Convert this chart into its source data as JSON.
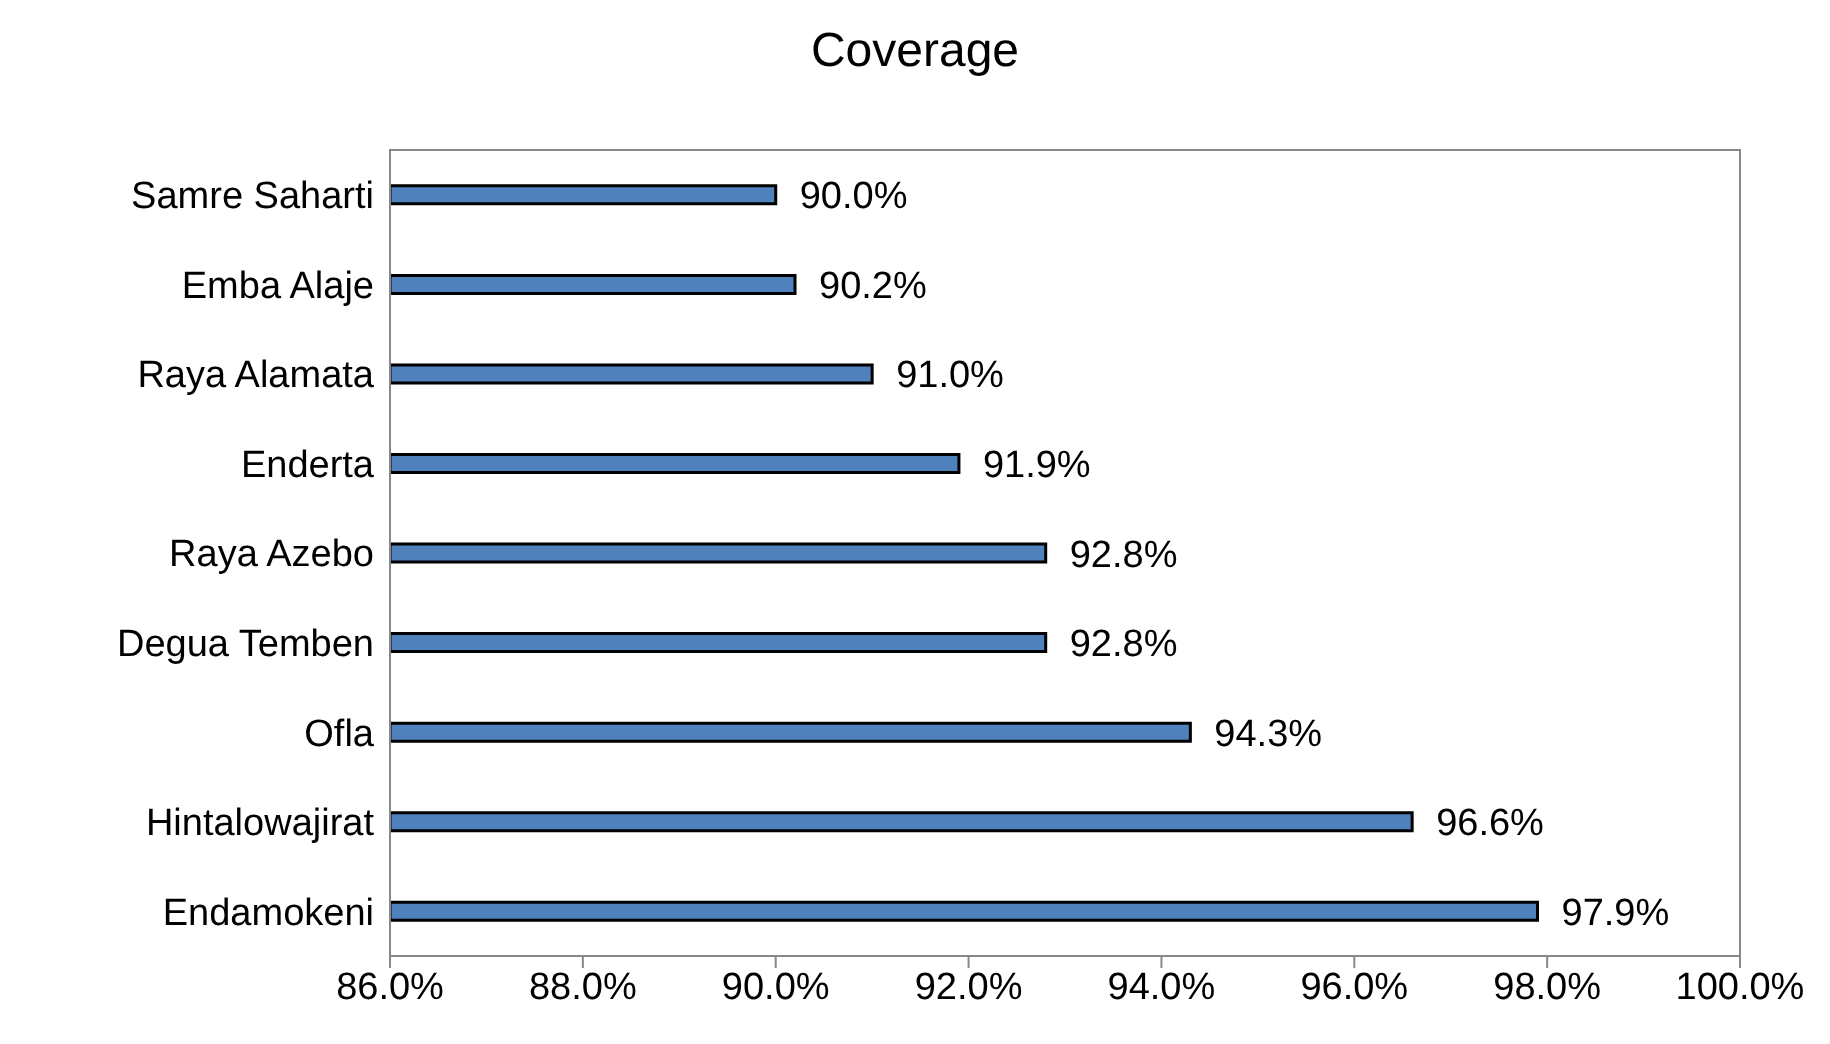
{
  "chart_data": {
    "type": "bar",
    "orientation": "horizontal",
    "title": "Coverage",
    "categories": [
      "Samre Saharti",
      "Emba Alaje",
      "Raya Alamata",
      "Enderta",
      "Raya Azebo",
      "Degua Temben",
      "Ofla",
      "Hintalowajirat",
      "Endamokeni"
    ],
    "values": [
      90.0,
      90.2,
      91.0,
      91.9,
      92.8,
      92.8,
      94.3,
      96.6,
      97.9
    ],
    "value_labels": [
      "90.0%",
      "90.2%",
      "91.0%",
      "91.9%",
      "92.8%",
      "92.8%",
      "94.3%",
      "96.6%",
      "97.9%"
    ],
    "color": "#4f81bd",
    "xlim": [
      86,
      100
    ],
    "xticks": [
      {
        "value": 86,
        "label": "86.0%"
      },
      {
        "value": 88,
        "label": "88.0%"
      },
      {
        "value": 90,
        "label": "90.0%"
      },
      {
        "value": 92,
        "label": "92.0%"
      },
      {
        "value": 94,
        "label": "94.0%"
      },
      {
        "value": 96,
        "label": "96.0%"
      },
      {
        "value": 98,
        "label": "98.0%"
      },
      {
        "value": 100,
        "label": "100.0%"
      }
    ],
    "grid": false,
    "legend": false
  }
}
